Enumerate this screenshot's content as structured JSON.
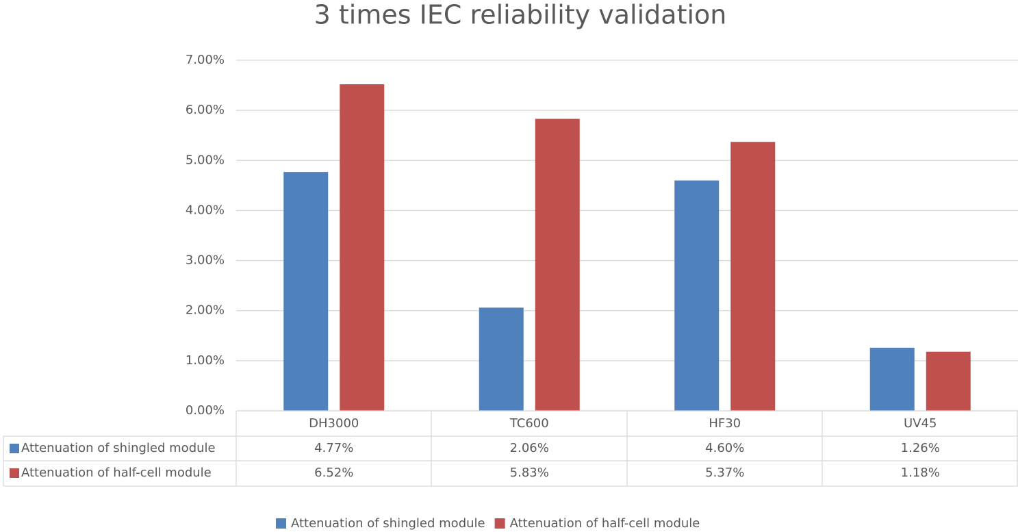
{
  "chart_data": {
    "type": "bar",
    "title": "3 times IEC reliability validation",
    "categories": [
      "DH3000",
      "TC600",
      "HF30",
      "UV45"
    ],
    "series": [
      {
        "name": "Attenuation of shingled module",
        "color": "#4f81bd",
        "values": [
          4.77,
          2.06,
          4.6,
          1.26
        ],
        "value_labels": [
          "4.77%",
          "2.06%",
          "4.60%",
          "1.26%"
        ]
      },
      {
        "name": "Attenuation of half-cell module",
        "color": "#c0504d",
        "values": [
          6.52,
          5.83,
          5.37,
          1.18
        ],
        "value_labels": [
          "6.52%",
          "5.83%",
          "5.37%",
          "1.18%"
        ]
      }
    ],
    "ylim": [
      0,
      7
    ],
    "yticks": [
      {
        "value": 0,
        "label": "0.00%"
      },
      {
        "value": 1,
        "label": "1.00%"
      },
      {
        "value": 2,
        "label": "2.00%"
      },
      {
        "value": 3,
        "label": "3.00%"
      },
      {
        "value": 4,
        "label": "4.00%"
      },
      {
        "value": 5,
        "label": "5.00%"
      },
      {
        "value": 6,
        "label": "6.00%"
      },
      {
        "value": 7,
        "label": "7.00%"
      }
    ],
    "grid": true
  }
}
